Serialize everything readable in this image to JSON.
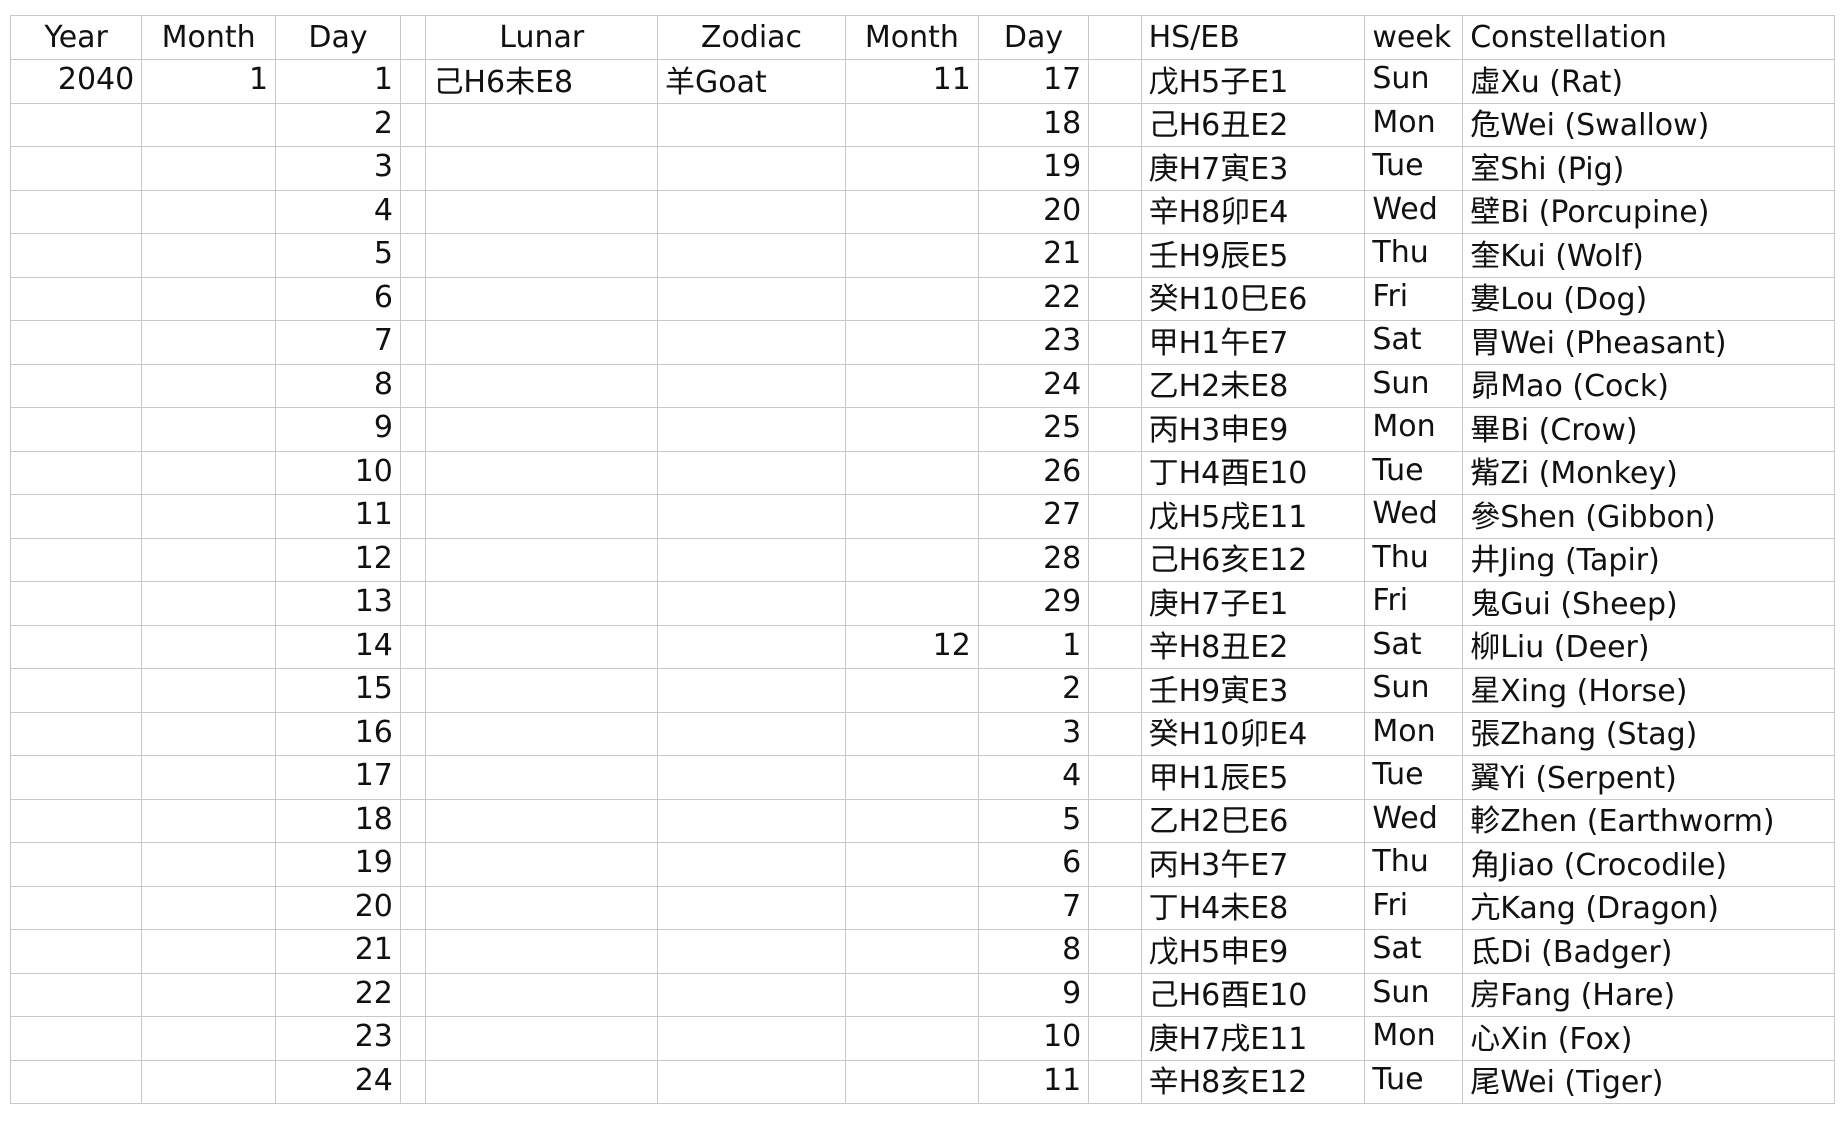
{
  "headers": [
    "Year",
    "Month",
    "Day",
    "",
    "Lunar",
    "Zodiac",
    "Month",
    "Day",
    "",
    "HS/EB",
    "week",
    "Constellation"
  ],
  "rows": [
    {
      "year": "2040",
      "month": "1",
      "day": "1",
      "lunar": "己H6未E8",
      "zodiac": "羊Goat",
      "lmonth": "11",
      "lday": "17",
      "hseb": "戊H5子E1",
      "week": "Sun",
      "constellation": "虛Xu (Rat)"
    },
    {
      "year": "",
      "month": "",
      "day": "2",
      "lunar": "",
      "zodiac": "",
      "lmonth": "",
      "lday": "18",
      "hseb": "己H6丑E2",
      "week": "Mon",
      "constellation": "危Wei (Swallow)"
    },
    {
      "year": "",
      "month": "",
      "day": "3",
      "lunar": "",
      "zodiac": "",
      "lmonth": "",
      "lday": "19",
      "hseb": "庚H7寅E3",
      "week": "Tue",
      "constellation": "室Shi (Pig)"
    },
    {
      "year": "",
      "month": "",
      "day": "4",
      "lunar": "",
      "zodiac": "",
      "lmonth": "",
      "lday": "20",
      "hseb": "辛H8卯E4",
      "week": "Wed",
      "constellation": "壁Bi (Porcupine)"
    },
    {
      "year": "",
      "month": "",
      "day": "5",
      "lunar": "",
      "zodiac": "",
      "lmonth": "",
      "lday": "21",
      "hseb": "壬H9辰E5",
      "week": "Thu",
      "constellation": "奎Kui (Wolf)"
    },
    {
      "year": "",
      "month": "",
      "day": "6",
      "lunar": "",
      "zodiac": "",
      "lmonth": "",
      "lday": "22",
      "hseb": "癸H10巳E6",
      "week": "Fri",
      "constellation": "婁Lou (Dog)"
    },
    {
      "year": "",
      "month": "",
      "day": "7",
      "lunar": "",
      "zodiac": "",
      "lmonth": "",
      "lday": "23",
      "hseb": "甲H1午E7",
      "week": "Sat",
      "constellation": "胃Wei (Pheasant)"
    },
    {
      "year": "",
      "month": "",
      "day": "8",
      "lunar": "",
      "zodiac": "",
      "lmonth": "",
      "lday": "24",
      "hseb": "乙H2未E8",
      "week": "Sun",
      "constellation": "昴Mao (Cock)"
    },
    {
      "year": "",
      "month": "",
      "day": "9",
      "lunar": "",
      "zodiac": "",
      "lmonth": "",
      "lday": "25",
      "hseb": "丙H3申E9",
      "week": "Mon",
      "constellation": "畢Bi (Crow)"
    },
    {
      "year": "",
      "month": "",
      "day": "10",
      "lunar": "",
      "zodiac": "",
      "lmonth": "",
      "lday": "26",
      "hseb": "丁H4酉E10",
      "week": "Tue",
      "constellation": "觜Zi (Monkey)"
    },
    {
      "year": "",
      "month": "",
      "day": "11",
      "lunar": "",
      "zodiac": "",
      "lmonth": "",
      "lday": "27",
      "hseb": "戊H5戌E11",
      "week": "Wed",
      "constellation": "參Shen (Gibbon)"
    },
    {
      "year": "",
      "month": "",
      "day": "12",
      "lunar": "",
      "zodiac": "",
      "lmonth": "",
      "lday": "28",
      "hseb": "己H6亥E12",
      "week": "Thu",
      "constellation": "井Jing (Tapir)"
    },
    {
      "year": "",
      "month": "",
      "day": "13",
      "lunar": "",
      "zodiac": "",
      "lmonth": "",
      "lday": "29",
      "hseb": "庚H7子E1",
      "week": "Fri",
      "constellation": "鬼Gui (Sheep)"
    },
    {
      "year": "",
      "month": "",
      "day": "14",
      "lunar": "",
      "zodiac": "",
      "lmonth": "12",
      "lday": "1",
      "hseb": "辛H8丑E2",
      "week": "Sat",
      "constellation": "柳Liu (Deer)"
    },
    {
      "year": "",
      "month": "",
      "day": "15",
      "lunar": "",
      "zodiac": "",
      "lmonth": "",
      "lday": "2",
      "hseb": "壬H9寅E3",
      "week": "Sun",
      "constellation": "星Xing (Horse)"
    },
    {
      "year": "",
      "month": "",
      "day": "16",
      "lunar": "",
      "zodiac": "",
      "lmonth": "",
      "lday": "3",
      "hseb": "癸H10卯E4",
      "week": "Mon",
      "constellation": "張Zhang (Stag)"
    },
    {
      "year": "",
      "month": "",
      "day": "17",
      "lunar": "",
      "zodiac": "",
      "lmonth": "",
      "lday": "4",
      "hseb": "甲H1辰E5",
      "week": "Tue",
      "constellation": "翼Yi (Serpent)"
    },
    {
      "year": "",
      "month": "",
      "day": "18",
      "lunar": "",
      "zodiac": "",
      "lmonth": "",
      "lday": "5",
      "hseb": "乙H2巳E6",
      "week": "Wed",
      "constellation": "軫Zhen (Earthworm)"
    },
    {
      "year": "",
      "month": "",
      "day": "19",
      "lunar": "",
      "zodiac": "",
      "lmonth": "",
      "lday": "6",
      "hseb": "丙H3午E7",
      "week": "Thu",
      "constellation": "角Jiao (Crocodile)"
    },
    {
      "year": "",
      "month": "",
      "day": "20",
      "lunar": "",
      "zodiac": "",
      "lmonth": "",
      "lday": "7",
      "hseb": "丁H4未E8",
      "week": "Fri",
      "constellation": "亢Kang (Dragon)"
    },
    {
      "year": "",
      "month": "",
      "day": "21",
      "lunar": "",
      "zodiac": "",
      "lmonth": "",
      "lday": "8",
      "hseb": "戊H5申E9",
      "week": "Sat",
      "constellation": "氐Di (Badger)"
    },
    {
      "year": "",
      "month": "",
      "day": "22",
      "lunar": "",
      "zodiac": "",
      "lmonth": "",
      "lday": "9",
      "hseb": "己H6酉E10",
      "week": "Sun",
      "constellation": "房Fang (Hare)"
    },
    {
      "year": "",
      "month": "",
      "day": "23",
      "lunar": "",
      "zodiac": "",
      "lmonth": "",
      "lday": "10",
      "hseb": "庚H7戌E11",
      "week": "Mon",
      "constellation": "心Xin (Fox)"
    },
    {
      "year": "",
      "month": "",
      "day": "24",
      "lunar": "",
      "zodiac": "",
      "lmonth": "",
      "lday": "11",
      "hseb": "辛H8亥E12",
      "week": "Tue",
      "constellation": "尾Wei (Tiger)"
    }
  ]
}
